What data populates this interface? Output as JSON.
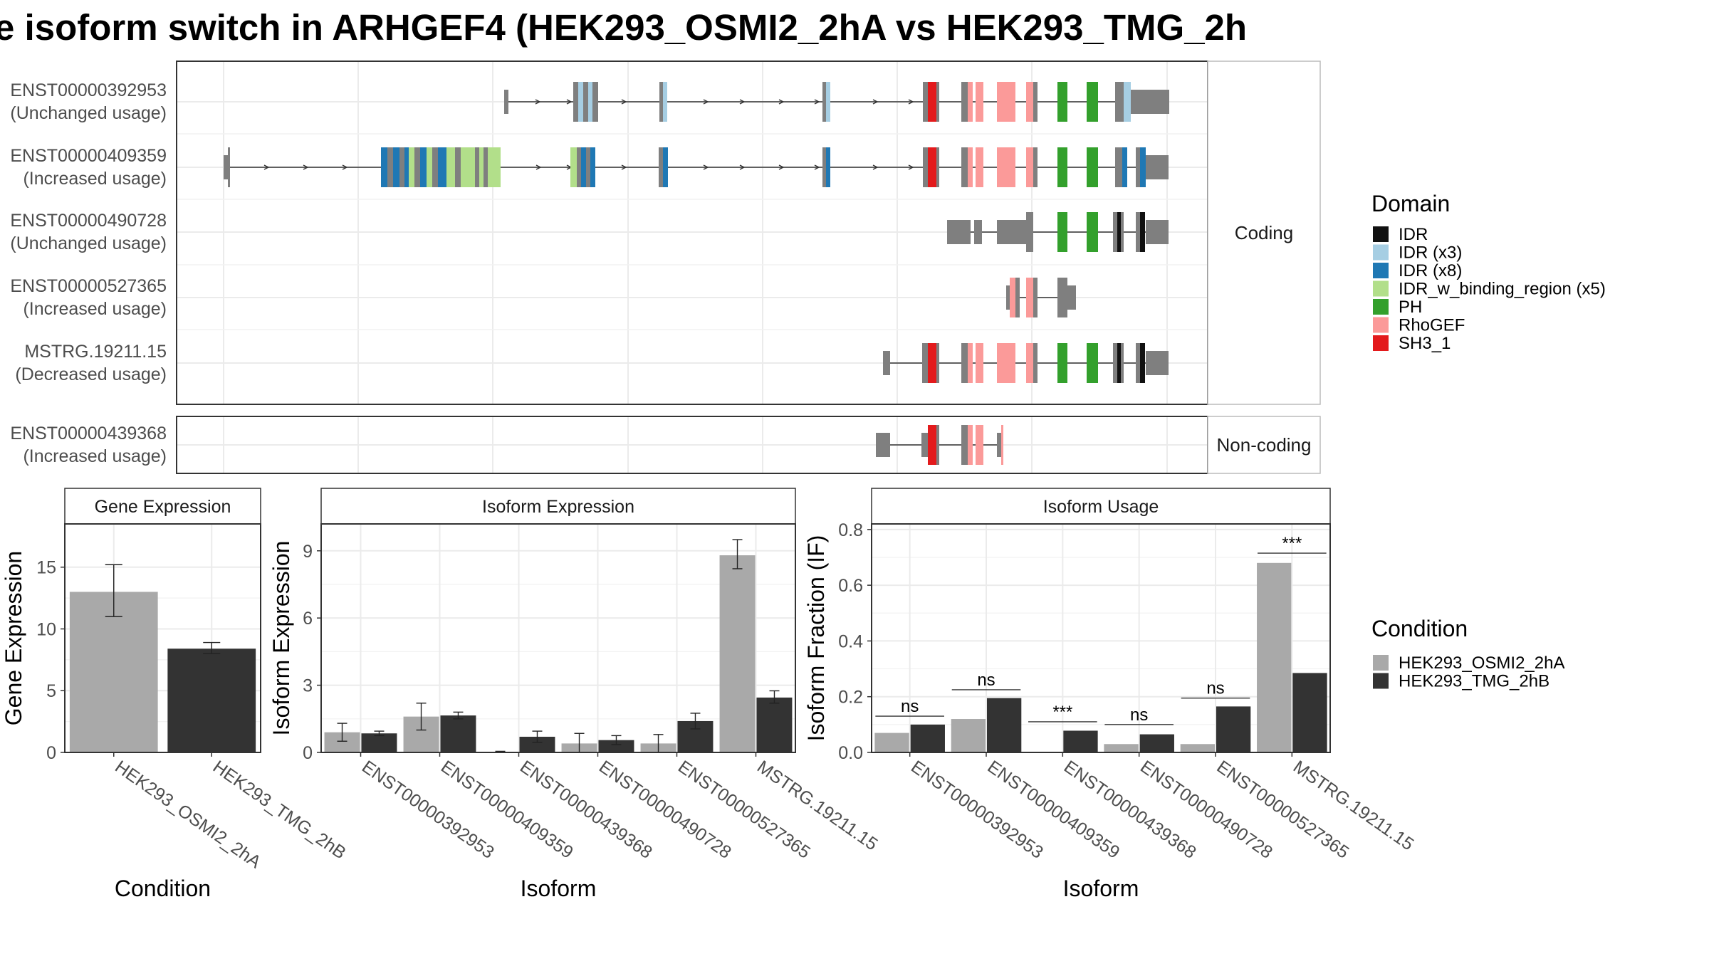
{
  "title": "e isoform switch in ARHGEF4 (HEK293_OSMI2_2hA vs HEK293_TMG_2h",
  "colors": {
    "condition_a": "#a9a9a9",
    "condition_b": "#333333",
    "utr": "#7f7f7f",
    "IDR": "#111111",
    "IDR_x3": "#a6cee3",
    "IDR_x8": "#1f78b4",
    "IDR_w_binding_region_x5": "#b2df8a",
    "PH": "#33a02c",
    "RhoGEF": "#fb9a99",
    "SH3_1": "#e31a1c"
  },
  "structure": {
    "coding_label": "Coding",
    "noncoding_label": "Non-coding",
    "coding_isoforms": [
      {
        "id": "ENST00000392953",
        "usage": "(Unchanged usage)"
      },
      {
        "id": "ENST00000409359",
        "usage": "(Increased usage)"
      },
      {
        "id": "ENST00000490728",
        "usage": "(Unchanged usage)"
      },
      {
        "id": "ENST00000527365",
        "usage": "(Increased usage)"
      },
      {
        "id": "MSTRG.19211.15",
        "usage": "(Decreased usage)"
      }
    ],
    "noncoding_isoforms": [
      {
        "id": "ENST00000439368",
        "usage": "(Increased usage)"
      }
    ]
  },
  "legends": {
    "domain_title": "Domain",
    "domain_items": [
      {
        "label": "IDR",
        "color": "#111111"
      },
      {
        "label": "IDR (x3)",
        "color": "#a6cee3"
      },
      {
        "label": "IDR (x8)",
        "color": "#1f78b4"
      },
      {
        "label": "IDR_w_binding_region (x5)",
        "color": "#b2df8a"
      },
      {
        "label": "PH",
        "color": "#33a02c"
      },
      {
        "label": "RhoGEF",
        "color": "#fb9a99"
      },
      {
        "label": "SH3_1",
        "color": "#e31a1c"
      }
    ],
    "condition_title": "Condition",
    "condition_items": [
      {
        "label": "HEK293_OSMI2_2hA",
        "color": "#a9a9a9"
      },
      {
        "label": "HEK293_TMG_2hB",
        "color": "#333333"
      }
    ]
  },
  "chart_data": [
    {
      "type": "bar",
      "title": "Gene Expression",
      "xlabel": "Condition",
      "ylabel": "Gene Expression",
      "ylim": [
        0,
        18.5
      ],
      "yticks": [
        0,
        5,
        10,
        15
      ],
      "categories": [
        "HEK293_OSMI2_2hA",
        "HEK293_TMG_2hB"
      ],
      "values": [
        13.0,
        8.4
      ],
      "err_low": [
        11.0,
        8.0
      ],
      "err_high": [
        15.2,
        8.9
      ],
      "colors": [
        "#a9a9a9",
        "#333333"
      ]
    },
    {
      "type": "bar",
      "title": "Isoform Expression",
      "xlabel": "Isoform",
      "ylabel": "Isoform Expression",
      "ylim": [
        0,
        10.2
      ],
      "yticks": [
        0,
        3,
        6,
        9
      ],
      "categories": [
        "ENST00000392953",
        "ENST00000409359",
        "ENST00000439368",
        "ENST00000490728",
        "ENST00000527365",
        "MSTRG.19211.15"
      ],
      "series": [
        {
          "name": "HEK293_OSMI2_2hA",
          "values": [
            0.9,
            1.6,
            0.02,
            0.4,
            0.4,
            8.8
          ],
          "err_low": [
            0.5,
            1.0,
            0.0,
            0.0,
            0.0,
            8.2
          ],
          "err_high": [
            1.3,
            2.2,
            0.05,
            0.85,
            0.8,
            9.5
          ]
        },
        {
          "name": "HEK293_TMG_2hB",
          "values": [
            0.85,
            1.65,
            0.7,
            0.55,
            1.4,
            2.45
          ],
          "err_low": [
            0.75,
            1.5,
            0.45,
            0.35,
            1.05,
            2.2
          ],
          "err_high": [
            0.95,
            1.8,
            0.95,
            0.75,
            1.75,
            2.75
          ]
        }
      ]
    },
    {
      "type": "bar",
      "title": "Isoform Usage",
      "xlabel": "Isoform",
      "ylabel": "Isoform Fraction (IF)",
      "ylim": [
        0,
        0.82
      ],
      "yticks": [
        0.0,
        0.2,
        0.4,
        0.6,
        0.8
      ],
      "ytick_labels": [
        "0.0",
        "0.2",
        "0.4",
        "0.6",
        "0.8"
      ],
      "categories": [
        "ENST00000392953",
        "ENST00000409359",
        "ENST00000439368",
        "ENST00000490728",
        "ENST00000527365",
        "MSTRG.19211.15"
      ],
      "series": [
        {
          "name": "HEK293_OSMI2_2hA",
          "values": [
            0.07,
            0.12,
            0.0,
            0.03,
            0.03,
            0.68
          ]
        },
        {
          "name": "HEK293_TMG_2hB",
          "values": [
            0.1,
            0.195,
            0.078,
            0.065,
            0.165,
            0.285
          ]
        }
      ],
      "significance": [
        "ns",
        "ns",
        "***",
        "ns",
        "ns",
        "***"
      ],
      "significance_levels": [
        0.13,
        0.225,
        0.11,
        0.1,
        0.195,
        0.715
      ]
    }
  ]
}
